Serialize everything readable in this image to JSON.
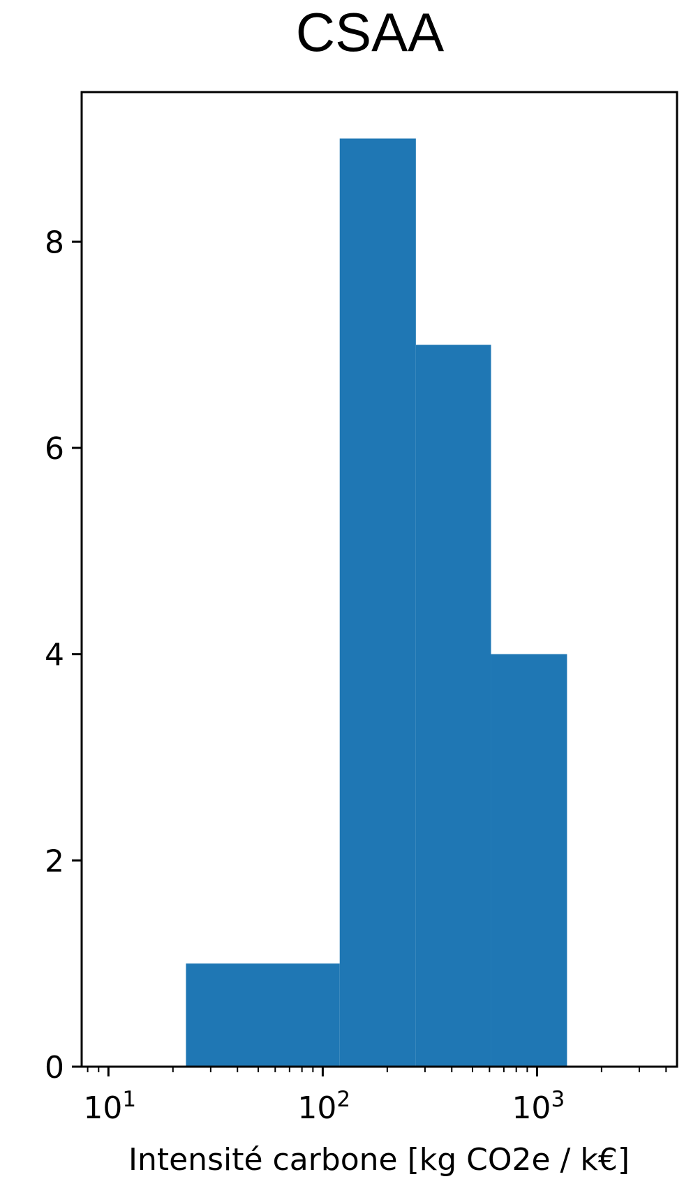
{
  "chart_data": {
    "type": "bar",
    "title": "CSAA",
    "xlabel": "Intensité carbone [kg CO2e / k€]",
    "ylabel": "",
    "xscale": "log",
    "xlim": [
      7.5,
      4500
    ],
    "ylim": [
      0,
      9.45
    ],
    "grid": false,
    "bar_color": "#1f77b4",
    "bins": [
      {
        "x0": 23,
        "x1": 120,
        "count": 1
      },
      {
        "x0": 120,
        "x1": 272,
        "count": 9
      },
      {
        "x0": 272,
        "x1": 610,
        "count": 7
      },
      {
        "x0": 610,
        "x1": 1380,
        "count": 4
      }
    ],
    "y_ticks": [
      {
        "value": 0,
        "label": "0"
      },
      {
        "value": 2,
        "label": "2"
      },
      {
        "value": 4,
        "label": "4"
      },
      {
        "value": 6,
        "label": "6"
      },
      {
        "value": 8,
        "label": "8"
      }
    ],
    "x_ticks": [
      {
        "value": 10,
        "base": "10",
        "exp": "1"
      },
      {
        "value": 100,
        "base": "10",
        "exp": "2"
      },
      {
        "value": 1000,
        "base": "10",
        "exp": "3"
      }
    ]
  }
}
